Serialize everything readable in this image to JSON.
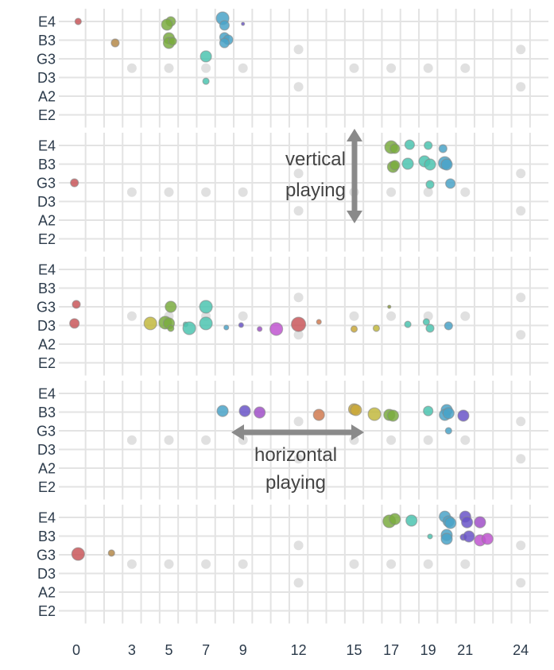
{
  "chart_data": {
    "type": "scatter",
    "title": "",
    "xlabel": "",
    "ylabel": "",
    "xlim": [
      -0.5,
      25
    ],
    "x_ticks": [
      0,
      3,
      5,
      7,
      9,
      12,
      15,
      17,
      19,
      21,
      24
    ],
    "y_categories": [
      "E4",
      "B3",
      "G3",
      "D3",
      "A2",
      "E2"
    ],
    "y_values": {
      "E4": 6,
      "B3": 5,
      "G3": 4,
      "D3": 3,
      "A2": 2,
      "E2": 1
    },
    "grid": true,
    "fret_markers": {
      "single": {
        "frets": [
          3,
          5,
          7,
          9,
          15,
          17,
          19,
          21
        ],
        "y": [
          3.5
        ]
      },
      "double": {
        "frets": [
          12,
          24
        ],
        "y": [
          2.5,
          4.5
        ]
      },
      "color": "#e0e0e0"
    },
    "colors": {
      "red": "#c9575b",
      "brown": "#b58a4a",
      "green": "#7aab3f",
      "teal": "#4cc4b0",
      "blue": "#4aa3c8",
      "purple": "#6a55c8",
      "violet": "#a050c8",
      "magenta": "#c055d0",
      "orange": "#d07a50",
      "yellow": "#c2b83e",
      "gold": "#c9a83a",
      "olive": "#8a9a40"
    },
    "annotations": [
      {
        "panel": 2,
        "lines": [
          "vertical",
          "playing"
        ],
        "arrow": "vertical"
      },
      {
        "panel": 4,
        "lines": [
          "horizontal",
          "playing"
        ],
        "arrow": "horizontal"
      }
    ],
    "panels": [
      {
        "points": [
          [
            0.1,
            6.0,
            4,
            "red"
          ],
          [
            2.1,
            4.85,
            5,
            "brown"
          ],
          [
            5.1,
            6.0,
            6,
            "green"
          ],
          [
            4.9,
            5.83,
            7,
            "green"
          ],
          [
            5.0,
            5.1,
            7,
            "green"
          ],
          [
            5.0,
            4.85,
            7,
            "green"
          ],
          [
            5.2,
            4.94,
            5,
            "green"
          ],
          [
            7.0,
            4.13,
            7,
            "teal"
          ],
          [
            7.0,
            2.8,
            4,
            "teal"
          ],
          [
            7.9,
            6.17,
            8,
            "blue"
          ],
          [
            8.0,
            5.79,
            6,
            "blue"
          ],
          [
            8.0,
            5.15,
            6,
            "blue"
          ],
          [
            8.2,
            5.02,
            6,
            "blue"
          ],
          [
            8.0,
            4.85,
            6,
            "blue"
          ],
          [
            9.0,
            5.87,
            2,
            "purple"
          ]
        ]
      },
      {
        "points": [
          [
            -0.1,
            4.0,
            5,
            "red"
          ],
          [
            17.0,
            5.91,
            8,
            "green"
          ],
          [
            17.2,
            5.83,
            6,
            "green"
          ],
          [
            17.1,
            4.85,
            7,
            "green"
          ],
          [
            17.2,
            4.94,
            6,
            "green"
          ],
          [
            18.0,
            6.04,
            6,
            "teal"
          ],
          [
            17.9,
            5.02,
            7,
            "teal"
          ],
          [
            19.0,
            6.0,
            5,
            "teal"
          ],
          [
            18.8,
            5.15,
            7,
            "teal"
          ],
          [
            19.1,
            4.98,
            7,
            "teal"
          ],
          [
            19.8,
            5.83,
            5,
            "blue"
          ],
          [
            19.9,
            5.06,
            8,
            "blue"
          ],
          [
            20.0,
            4.98,
            7,
            "blue"
          ],
          [
            19.1,
            3.91,
            5,
            "teal"
          ],
          [
            20.2,
            3.96,
            6,
            "blue"
          ]
        ]
      },
      {
        "points": [
          [
            0.0,
            4.13,
            5,
            "red"
          ],
          [
            -0.1,
            3.11,
            6,
            "red"
          ],
          [
            4.0,
            3.11,
            8,
            "yellow"
          ],
          [
            4.8,
            3.15,
            8,
            "green"
          ],
          [
            5.0,
            3.11,
            7,
            "green"
          ],
          [
            5.1,
            4.0,
            7,
            "green"
          ],
          [
            5.1,
            2.85,
            4,
            "green"
          ],
          [
            5.9,
            3.06,
            3,
            "teal"
          ],
          [
            6.1,
            2.85,
            8,
            "teal"
          ],
          [
            7.0,
            4.0,
            8,
            "teal"
          ],
          [
            7.0,
            3.11,
            8,
            "teal"
          ],
          [
            8.1,
            2.89,
            3,
            "blue"
          ],
          [
            8.9,
            3.02,
            3,
            "purple"
          ],
          [
            9.9,
            2.81,
            3,
            "violet"
          ],
          [
            10.8,
            2.81,
            8,
            "magenta"
          ],
          [
            12.0,
            3.06,
            9,
            "red"
          ],
          [
            13.1,
            3.19,
            3,
            "orange"
          ],
          [
            15.0,
            2.81,
            4,
            "gold"
          ],
          [
            16.2,
            2.85,
            4,
            "yellow"
          ],
          [
            16.9,
            4.0,
            2,
            "olive"
          ],
          [
            17.9,
            3.06,
            4,
            "teal"
          ],
          [
            18.9,
            3.19,
            4,
            "teal"
          ],
          [
            19.1,
            2.85,
            5,
            "teal"
          ],
          [
            20.1,
            2.98,
            5,
            "blue"
          ]
        ]
      },
      {
        "points": [
          [
            7.9,
            5.06,
            7,
            "blue"
          ],
          [
            9.1,
            5.06,
            7,
            "purple"
          ],
          [
            9.9,
            4.98,
            7,
            "violet"
          ],
          [
            13.1,
            4.85,
            7,
            "orange"
          ],
          [
            15.0,
            5.15,
            7,
            "gold"
          ],
          [
            15.1,
            5.11,
            7,
            "gold"
          ],
          [
            16.1,
            4.89,
            8,
            "yellow"
          ],
          [
            16.9,
            4.85,
            7,
            "green"
          ],
          [
            17.1,
            4.81,
            7,
            "green"
          ],
          [
            19.0,
            5.06,
            6,
            "teal"
          ],
          [
            20.0,
            5.11,
            7,
            "blue"
          ],
          [
            19.9,
            4.85,
            7,
            "blue"
          ],
          [
            20.1,
            4.94,
            7,
            "blue"
          ],
          [
            20.1,
            4.0,
            4,
            "blue"
          ],
          [
            20.9,
            4.81,
            7,
            "purple"
          ]
        ]
      },
      {
        "points": [
          [
            0.1,
            4.04,
            8,
            "red"
          ],
          [
            1.9,
            4.09,
            4,
            "brown"
          ],
          [
            16.9,
            5.79,
            8,
            "green"
          ],
          [
            17.2,
            5.91,
            7,
            "green"
          ],
          [
            18.1,
            5.83,
            7,
            "teal"
          ],
          [
            19.1,
            4.98,
            3,
            "teal"
          ],
          [
            19.9,
            6.04,
            7,
            "blue"
          ],
          [
            20.1,
            5.79,
            7,
            "blue"
          ],
          [
            20.2,
            5.7,
            7,
            "blue"
          ],
          [
            20.0,
            5.06,
            7,
            "blue"
          ],
          [
            20.0,
            4.85,
            7,
            "blue"
          ],
          [
            21.0,
            6.04,
            7,
            "purple"
          ],
          [
            21.1,
            5.74,
            7,
            "purple"
          ],
          [
            20.9,
            4.94,
            4,
            "purple"
          ],
          [
            21.2,
            4.98,
            7,
            "purple"
          ],
          [
            21.8,
            4.77,
            7,
            "magenta"
          ],
          [
            22.2,
            4.85,
            7,
            "magenta"
          ],
          [
            21.8,
            5.74,
            7,
            "violet"
          ]
        ]
      }
    ]
  }
}
